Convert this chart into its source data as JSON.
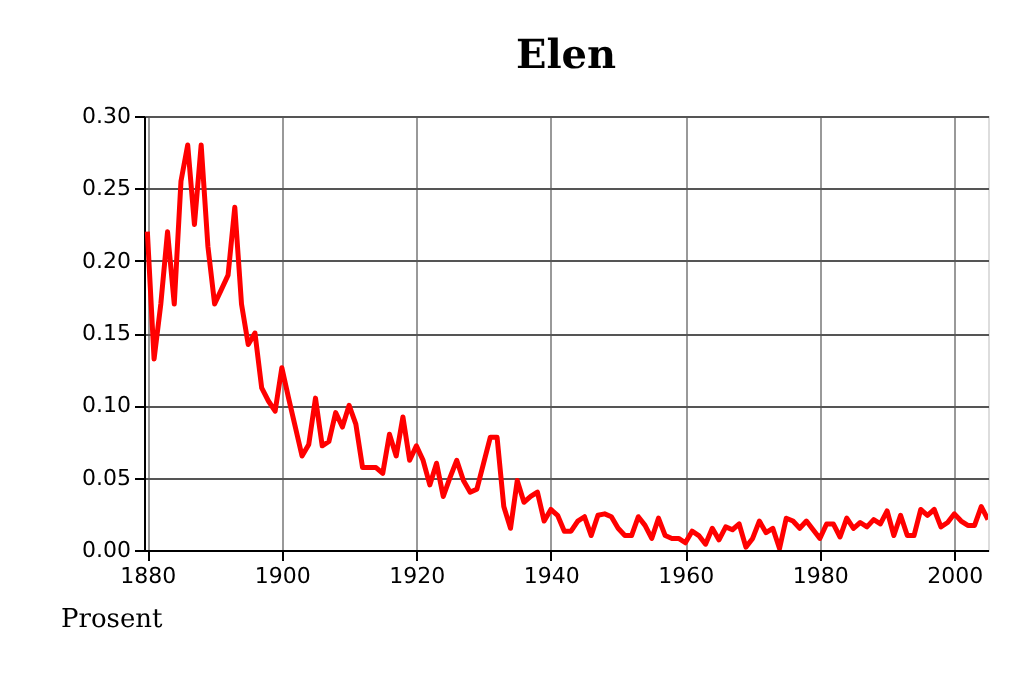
{
  "chart_data": {
    "type": "line",
    "title": "Elen",
    "ylabel": "Prosent",
    "x": [
      1880,
      1881,
      1882,
      1883,
      1884,
      1885,
      1886,
      1887,
      1888,
      1889,
      1890,
      1891,
      1892,
      1893,
      1894,
      1895,
      1896,
      1897,
      1898,
      1899,
      1900,
      1901,
      1902,
      1903,
      1904,
      1905,
      1906,
      1907,
      1908,
      1909,
      1910,
      1911,
      1912,
      1913,
      1914,
      1915,
      1916,
      1917,
      1918,
      1919,
      1920,
      1921,
      1922,
      1923,
      1924,
      1925,
      1926,
      1927,
      1928,
      1929,
      1930,
      1931,
      1932,
      1933,
      1934,
      1935,
      1936,
      1937,
      1938,
      1939,
      1940,
      1941,
      1942,
      1943,
      1944,
      1945,
      1946,
      1947,
      1948,
      1949,
      1950,
      1951,
      1952,
      1953,
      1954,
      1955,
      1956,
      1957,
      1958,
      1959,
      1960,
      1961,
      1962,
      1963,
      1964,
      1965,
      1966,
      1967,
      1968,
      1969,
      1970,
      1971,
      1972,
      1973,
      1974,
      1975,
      1976,
      1977,
      1978,
      1979,
      1980,
      1981,
      1982,
      1983,
      1984,
      1985,
      1986,
      1987,
      1988,
      1989,
      1990,
      1991,
      1992,
      1993,
      1994,
      1995,
      1996,
      1997,
      1998,
      1999,
      2000,
      2001,
      2002,
      2003,
      2004,
      2005
    ],
    "series": [
      {
        "color": "#ff0000",
        "values": [
          0.22,
          0.132,
          0.17,
          0.22,
          0.17,
          0.255,
          0.28,
          0.225,
          0.28,
          0.21,
          0.17,
          0.18,
          0.19,
          0.237,
          0.17,
          0.142,
          0.15,
          0.112,
          0.103,
          0.096,
          0.126,
          0.105,
          0.085,
          0.065,
          0.073,
          0.105,
          0.072,
          0.075,
          0.095,
          0.085,
          0.1,
          0.087,
          0.057,
          0.057,
          0.057,
          0.053,
          0.08,
          0.065,
          0.092,
          0.062,
          0.072,
          0.062,
          0.045,
          0.06,
          0.037,
          0.05,
          0.062,
          0.048,
          0.04,
          0.042,
          0.06,
          0.078,
          0.078,
          0.03,
          0.015,
          0.048,
          0.033,
          0.037,
          0.04,
          0.02,
          0.028,
          0.024,
          0.013,
          0.013,
          0.02,
          0.023,
          0.01,
          0.024,
          0.025,
          0.023,
          0.015,
          0.01,
          0.01,
          0.023,
          0.017,
          0.008,
          0.022,
          0.01,
          0.008,
          0.008,
          0.005,
          0.013,
          0.01,
          0.004,
          0.015,
          0.007,
          0.016,
          0.014,
          0.018,
          0.002,
          0.008,
          0.02,
          0.012,
          0.015,
          0.001,
          0.022,
          0.02,
          0.015,
          0.02,
          0.014,
          0.008,
          0.018,
          0.018,
          0.009,
          0.022,
          0.015,
          0.019,
          0.016,
          0.021,
          0.018,
          0.027,
          0.01,
          0.024,
          0.01,
          0.01,
          0.028,
          0.024,
          0.028,
          0.016,
          0.019,
          0.025,
          0.02,
          0.017,
          0.017,
          0.03,
          0.021
        ]
      }
    ],
    "xlim": [
      1879.5,
      2005
    ],
    "xticks": [
      1880,
      1900,
      1920,
      1940,
      1960,
      1980,
      2000
    ],
    "ylim": [
      0,
      0.3
    ],
    "yticks": [
      {
        "value": 0,
        "label": "0.00"
      },
      {
        "value": 0.05,
        "label": "0.05"
      },
      {
        "value": 0.1,
        "label": "0.10"
      },
      {
        "value": 0.15,
        "label": "0.15"
      },
      {
        "value": 0.2,
        "label": "0.20"
      },
      {
        "value": 0.25,
        "label": "0.25"
      },
      {
        "value": 0.3,
        "label": "0.30"
      }
    ],
    "grid": true,
    "marker": "none",
    "line_style": "solid"
  }
}
